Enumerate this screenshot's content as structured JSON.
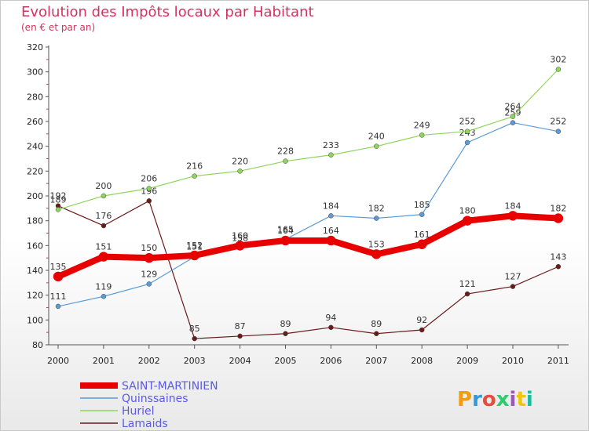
{
  "title": "Evolution des Impôts locaux par Habitant",
  "subtitle": "(en € et par an)",
  "logo_text": "Proxiti",
  "chart_data": {
    "type": "line",
    "x": [
      "2000",
      "2001",
      "2002",
      "2003",
      "2004",
      "2005",
      "2006",
      "2007",
      "2008",
      "2009",
      "2010",
      "2011"
    ],
    "ylim": [
      80,
      320
    ],
    "yticks": [
      80,
      100,
      120,
      140,
      160,
      180,
      200,
      220,
      240,
      260,
      280,
      300,
      320
    ],
    "grid": false,
    "legend_position": "bottom-left",
    "series": [
      {
        "name": "SAINT-MARTINIEN",
        "color": "#e80000",
        "width": 8,
        "values": [
          135,
          151,
          150,
          152,
          160,
          164,
          164,
          153,
          161,
          180,
          184,
          182
        ]
      },
      {
        "name": "Quinssaines",
        "color": "#5b9bd5",
        "width": 1.2,
        "values": [
          111,
          119,
          129,
          151,
          158,
          165,
          184,
          182,
          185,
          243,
          259,
          252
        ]
      },
      {
        "name": "Huriel",
        "color": "#8ed65a",
        "width": 1.2,
        "values": [
          189,
          200,
          206,
          216,
          220,
          228,
          233,
          240,
          249,
          252,
          264,
          302
        ]
      },
      {
        "name": "Lamaids",
        "color": "#6b1a1a",
        "width": 1.2,
        "values": [
          192,
          176,
          196,
          85,
          87,
          89,
          94,
          89,
          92,
          121,
          127,
          143
        ]
      }
    ]
  }
}
